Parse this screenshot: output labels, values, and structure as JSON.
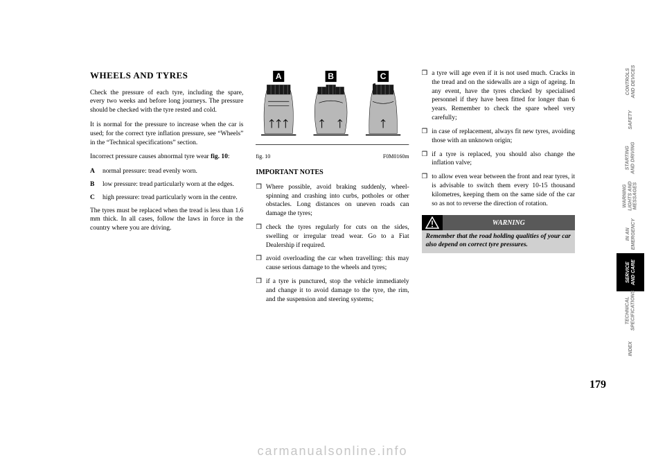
{
  "heading": "WHEELS AND TYRES",
  "col1": {
    "p1": "Check the pressure of each tyre, including the spare, every two weeks and before long journeys. The pressure should be checked with the tyre rested and cold.",
    "p2": "It is normal for the pressure to increase when the car is used; for the correct tyre inflation pressure, see “Wheels” in the “Technical specifications” section.",
    "p3_pre": "Incorrect pressure causes abnormal tyre wear ",
    "p3_bold": "fig. 10",
    "p3_post": ":",
    "A": "normal pressure: tread evenly worn.",
    "B": "low pressure: tread particularly worn at the edges.",
    "C": "high pressure: tread particularly worn in the centre.",
    "p4": "The tyres must be replaced when the tread is less than 1.6 mm thick. In all cases, follow the laws in force in the country where you are driving."
  },
  "figure": {
    "labels": [
      "A",
      "B",
      "C"
    ],
    "caption_left": "fig. 10",
    "caption_right": "F0M0160m",
    "colors": {
      "tread_dark": "#1a1a1a",
      "tire_body": "#b8b8b8",
      "line": "#000000",
      "label_bg": "#000000",
      "label_fg": "#ffffff"
    }
  },
  "col2": {
    "subhead": "IMPORTANT NOTES",
    "b1": "Where possible, avoid braking suddenly, wheel-spinning and crashing into curbs, potholes or other obstacles. Long distances on uneven roads can damage the tyres;",
    "b2": "check the tyres regularly for cuts on the sides, swelling or irregular tread wear. Go to a Fiat Dealership if required.",
    "b3": "avoid overloading the car when travelling: this may cause serious damage to the wheels and tyres;",
    "b4": "if a tyre is punctured, stop the vehicle immediately and change it to avoid damage to the tyre, the rim, and the suspension and steering systems;"
  },
  "col3": {
    "b1": "a tyre will age even if it is not used much. Cracks in the tread and on the sidewalls are a sign of ageing. In any event, have the tyres checked by specialised personnel if they have been fitted for longer than 6 years. Remember to check the spare wheel very carefully;",
    "b2": "in case of replacement, always fit new tyres, avoiding those with an unknown origin;",
    "b3": "if a tyre is replaced, you should also change the inflation valve;",
    "b4": "to allow even wear between the front and rear tyres, it is advisable to switch them every 10-15 thousand kilometres, keeping them on the same side of the car so as not to reverse the direction of rotation."
  },
  "warning": {
    "title": "WARNING",
    "body": "Remember that the road holding qualities of your car also depend on correct tyre pressures."
  },
  "sidebar": {
    "tabs": [
      {
        "label": "CONTROLS\nAND DEVICES",
        "active": false
      },
      {
        "label": "SAFETY",
        "active": false
      },
      {
        "label": "STARTING\nAND DRIVING",
        "active": false
      },
      {
        "label": "WARNING\nLIGHTS AND\nMESSAGES",
        "active": false
      },
      {
        "label": "IN AN\nEMERGENCY",
        "active": false
      },
      {
        "label": "SERVICE\nAND CARE",
        "active": true
      },
      {
        "label": "TECHNICAL\nSPECIFICATIONS",
        "active": false
      },
      {
        "label": "INDEX",
        "active": false
      }
    ]
  },
  "page_number": "179",
  "watermark": "carmanualsonline.info"
}
